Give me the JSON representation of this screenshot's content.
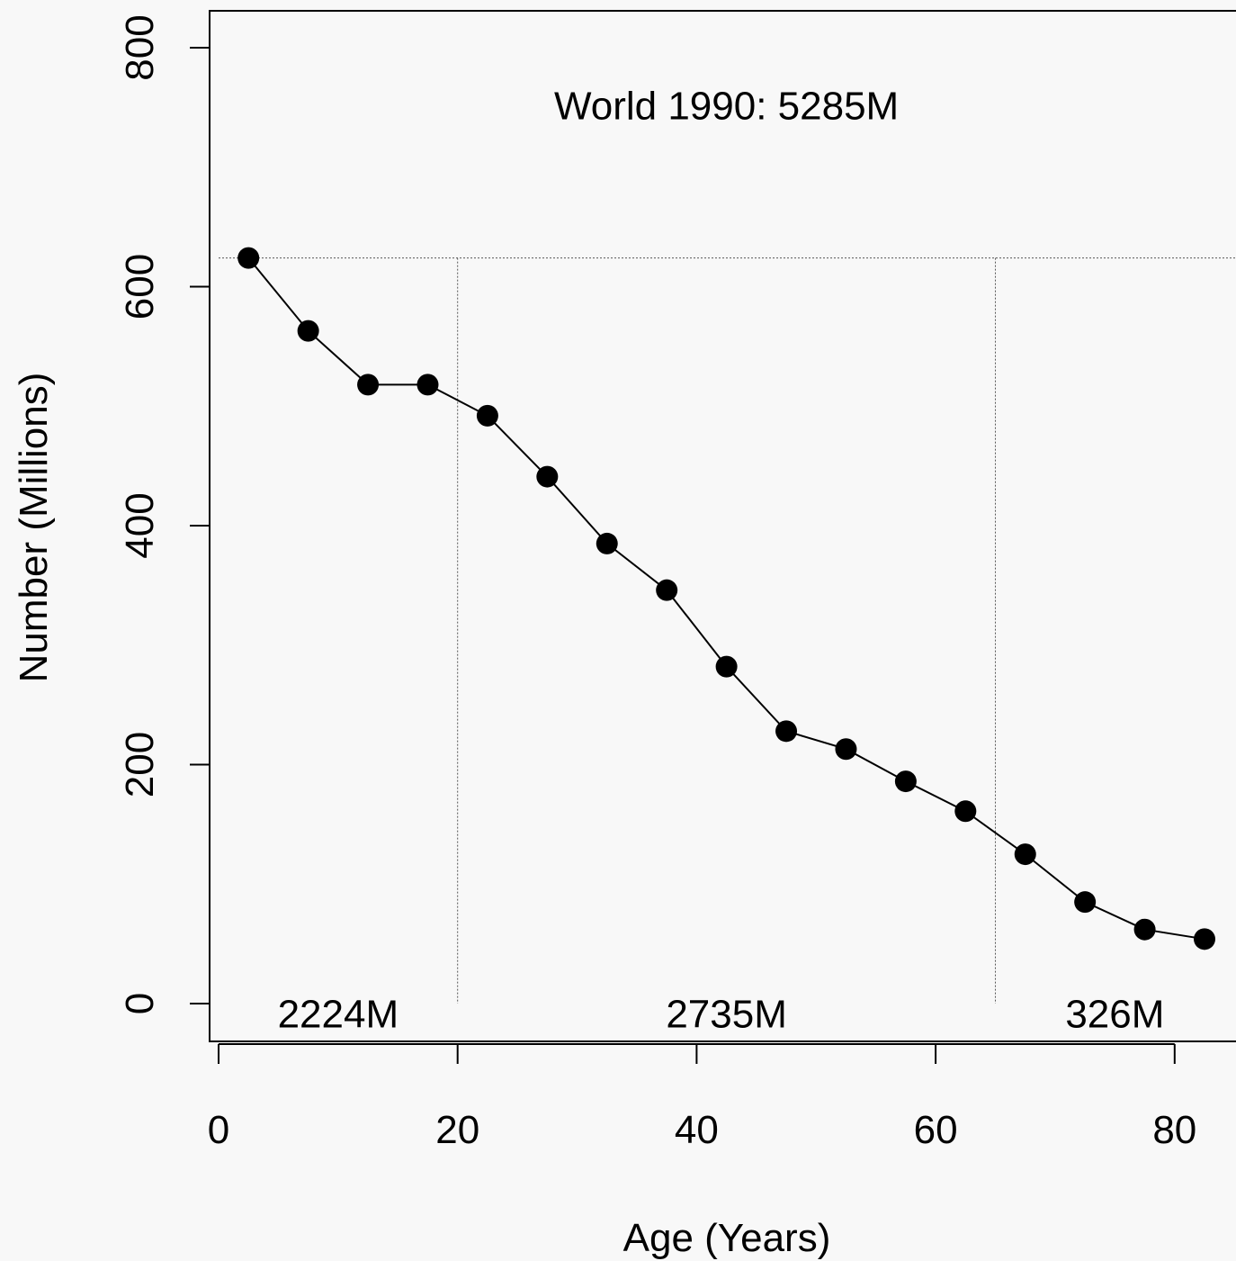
{
  "chart_data": {
    "type": "line",
    "title": "",
    "xlabel": "Age (Years)",
    "ylabel": "Number (Millions)",
    "xlim": [
      0,
      85
    ],
    "ylim": [
      0,
      800
    ],
    "x_ticks": [
      0,
      20,
      40,
      60,
      80
    ],
    "y_ticks": [
      0,
      200,
      400,
      600,
      800
    ],
    "grid": false,
    "marker": "filled-circle",
    "series": [
      {
        "x": [
          2.5,
          7.5,
          12.5,
          17.5,
          22.5,
          27.5,
          32.5,
          37.5,
          42.5,
          47.5,
          52.5,
          57.5,
          62.5,
          67.5,
          72.5,
          77.5,
          82.5
        ],
        "values": [
          624,
          563,
          518,
          518,
          492,
          441,
          385,
          346,
          282,
          228,
          213,
          186,
          161,
          125,
          85,
          62,
          54
        ]
      }
    ],
    "reference_lines": {
      "horizontal": {
        "y": 624
      },
      "vertical": [
        {
          "x": 20
        },
        {
          "x": 65
        }
      ]
    },
    "annotations": {
      "headline": {
        "text": "World 1990: 5285M",
        "x": 42.5,
        "y": 752
      },
      "groups": [
        {
          "text": "2224M",
          "x": 10,
          "y": -8
        },
        {
          "text": "2735M",
          "x": 42.5,
          "y": -8
        },
        {
          "text": "326M",
          "x": 75,
          "y": -8
        }
      ]
    },
    "colors": {
      "background": "#f8f8f8",
      "ink": "#000000",
      "reference": "#555555"
    }
  }
}
